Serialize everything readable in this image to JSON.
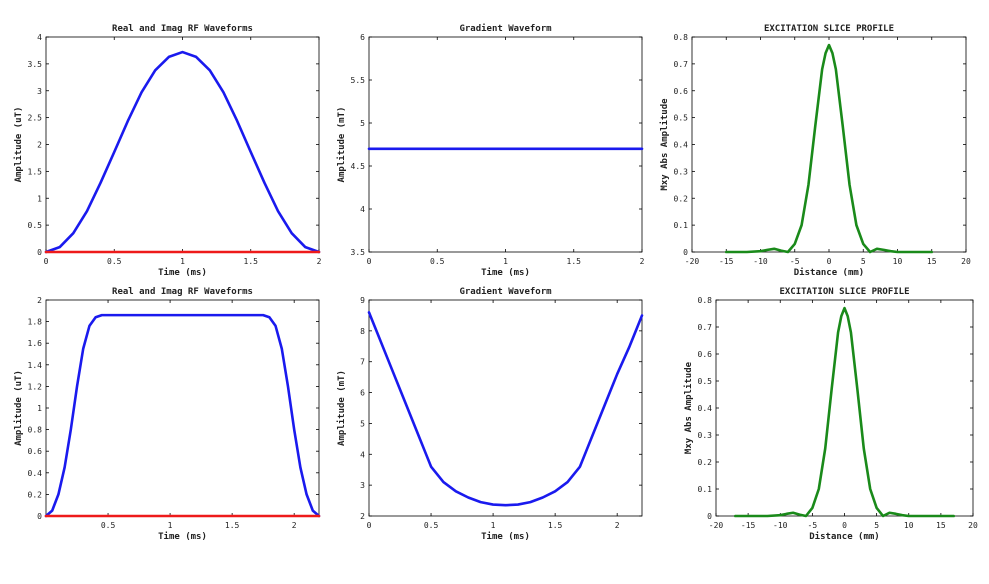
{
  "colors": {
    "real": "#1a1aee",
    "imag": "#ee1a1a",
    "profile": "#1a8a1a",
    "axis": "#000000"
  },
  "chart_data": [
    {
      "type": "line",
      "title": "Real and Imag RF Waveforms",
      "xlabel": "Time (ms)",
      "ylabel": "Amplitude (uT)",
      "xlim": [
        0,
        2
      ],
      "ylim": [
        0,
        4
      ],
      "xticks": [
        0,
        0.5,
        1,
        1.5,
        2
      ],
      "xtick_labels": [
        "0",
        "0.5",
        "1",
        "1.5",
        "2"
      ],
      "yticks": [
        0,
        0.5,
        1,
        1.5,
        2,
        2.5,
        3,
        3.5,
        4
      ],
      "ytick_labels": [
        "0",
        "0.5",
        "1",
        "1.5",
        "2",
        "2.5",
        "3",
        "3.5",
        "4"
      ],
      "grid": false,
      "series": [
        {
          "role": "real",
          "x": [
            0,
            0.1,
            0.2,
            0.3,
            0.4,
            0.5,
            0.6,
            0.7,
            0.8,
            0.9,
            1.0,
            1.1,
            1.2,
            1.3,
            1.4,
            1.5,
            1.6,
            1.7,
            1.8,
            1.9,
            2.0
          ],
          "y": [
            0,
            0.09,
            0.35,
            0.76,
            1.29,
            1.86,
            2.44,
            2.97,
            3.38,
            3.63,
            3.72,
            3.63,
            3.38,
            2.97,
            2.44,
            1.86,
            1.29,
            0.76,
            0.35,
            0.09,
            0
          ]
        },
        {
          "role": "imag",
          "x": [
            0,
            2
          ],
          "y": [
            0,
            0
          ]
        }
      ]
    },
    {
      "type": "line",
      "title": "Gradient Waveform",
      "xlabel": "Time (ms)",
      "ylabel": "Amplitude (mT)",
      "xlim": [
        0,
        2
      ],
      "ylim": [
        3.5,
        6
      ],
      "xticks": [
        0,
        0.5,
        1,
        1.5,
        2
      ],
      "xtick_labels": [
        "0",
        "0.5",
        "1",
        "1.5",
        "2"
      ],
      "yticks": [
        3.5,
        4,
        4.5,
        5,
        5.5,
        6
      ],
      "ytick_labels": [
        "3.5",
        "4",
        "4.5",
        "5",
        "5.5",
        "6"
      ],
      "grid": false,
      "series": [
        {
          "role": "real",
          "x": [
            0,
            2
          ],
          "y": [
            4.7,
            4.7
          ]
        }
      ]
    },
    {
      "type": "line",
      "title": "EXCITATION SLICE PROFILE",
      "xlabel": "Distance (mm)",
      "ylabel": "Mxy Abs Amplitude",
      "xlim": [
        -20,
        20
      ],
      "ylim": [
        0,
        0.8
      ],
      "xticks": [
        -20,
        -15,
        -10,
        -5,
        0,
        5,
        10,
        15,
        20
      ],
      "xtick_labels": [
        "-20",
        "-15",
        "-10",
        "-5",
        "0",
        "5",
        "10",
        "15",
        "20"
      ],
      "yticks": [
        0,
        0.1,
        0.2,
        0.3,
        0.4,
        0.5,
        0.6,
        0.7,
        0.8
      ],
      "ytick_labels": [
        "0",
        "0.1",
        "0.2",
        "0.3",
        "0.4",
        "0.5",
        "0.6",
        "0.7",
        "0.8"
      ],
      "grid": false,
      "series": [
        {
          "role": "profile",
          "x": [
            -15,
            -12,
            -10,
            -9,
            -8,
            -7,
            -6,
            -5,
            -4,
            -3,
            -2,
            -1,
            -0.5,
            0,
            0.5,
            1,
            2,
            3,
            4,
            5,
            6,
            7,
            8,
            9,
            10,
            12,
            15
          ],
          "y": [
            0,
            0,
            0.003,
            0.008,
            0.012,
            0.005,
            0,
            0.03,
            0.1,
            0.25,
            0.47,
            0.68,
            0.74,
            0.77,
            0.74,
            0.68,
            0.47,
            0.25,
            0.1,
            0.03,
            0,
            0.012,
            0.008,
            0.003,
            0,
            0,
            0
          ]
        }
      ]
    },
    {
      "type": "line",
      "title": "Real and Imag RF Waveforms",
      "xlabel": "Time (ms)",
      "ylabel": "Amplitude (uT)",
      "xlim": [
        0,
        2.2
      ],
      "ylim": [
        0,
        2
      ],
      "xticks": [
        0.5,
        1,
        1.5,
        2
      ],
      "xtick_labels": [
        "0.5",
        "1",
        "1.5",
        "2"
      ],
      "yticks": [
        0,
        0.2,
        0.4,
        0.6,
        0.8,
        1,
        1.2,
        1.4,
        1.6,
        1.8,
        2
      ],
      "ytick_labels": [
        "0",
        "0.2",
        "0.4",
        "0.6",
        "0.8",
        "1",
        "1.2",
        "1.4",
        "1.6",
        "1.8",
        "2"
      ],
      "grid": false,
      "series": [
        {
          "role": "real",
          "x": [
            0,
            0.05,
            0.1,
            0.15,
            0.2,
            0.25,
            0.3,
            0.35,
            0.4,
            0.45,
            1.0,
            1.75,
            1.8,
            1.85,
            1.9,
            1.95,
            2.0,
            2.05,
            2.1,
            2.15,
            2.2
          ],
          "y": [
            0,
            0.05,
            0.2,
            0.45,
            0.8,
            1.2,
            1.55,
            1.76,
            1.84,
            1.86,
            1.86,
            1.86,
            1.84,
            1.76,
            1.55,
            1.2,
            0.8,
            0.45,
            0.2,
            0.05,
            0
          ]
        },
        {
          "role": "imag",
          "x": [
            0,
            2.2
          ],
          "y": [
            0,
            0
          ]
        }
      ]
    },
    {
      "type": "line",
      "title": "Gradient Waveform",
      "xlabel": "Time (ms)",
      "ylabel": "Amplitude (mT)",
      "xlim": [
        0,
        2.2
      ],
      "ylim": [
        2,
        9
      ],
      "xticks": [
        0,
        0.5,
        1,
        1.5,
        2
      ],
      "xtick_labels": [
        "0",
        "0.5",
        "1",
        "1.5",
        "2"
      ],
      "yticks": [
        2,
        3,
        4,
        5,
        6,
        7,
        8,
        9
      ],
      "ytick_labels": [
        "2",
        "3",
        "4",
        "5",
        "6",
        "7",
        "8",
        "9"
      ],
      "grid": false,
      "series": [
        {
          "role": "real",
          "x": [
            0,
            0.1,
            0.2,
            0.3,
            0.4,
            0.45,
            0.5,
            0.6,
            0.7,
            0.8,
            0.9,
            1.0,
            1.1,
            1.2,
            1.3,
            1.4,
            1.5,
            1.6,
            1.7,
            1.75,
            1.8,
            1.9,
            2.0,
            2.1,
            2.2
          ],
          "y": [
            8.6,
            7.6,
            6.6,
            5.6,
            4.6,
            4.1,
            3.6,
            3.1,
            2.8,
            2.6,
            2.45,
            2.37,
            2.35,
            2.37,
            2.45,
            2.6,
            2.8,
            3.1,
            3.6,
            4.1,
            4.6,
            5.6,
            6.6,
            7.5,
            8.5
          ]
        }
      ]
    },
    {
      "type": "line",
      "title": "EXCITATION SLICE PROFILE",
      "xlabel": "Distance (mm)",
      "ylabel": "Mxy Abs Amplitude",
      "xlim": [
        -20,
        20
      ],
      "ylim": [
        0,
        0.8
      ],
      "xticks": [
        -20,
        -15,
        -10,
        -5,
        0,
        5,
        10,
        15,
        20
      ],
      "xtick_labels": [
        "-20",
        "-15",
        "-10",
        "-5",
        "0",
        "5",
        "10",
        "15",
        "20"
      ],
      "yticks": [
        0,
        0.1,
        0.2,
        0.3,
        0.4,
        0.5,
        0.6,
        0.7,
        0.8
      ],
      "ytick_labels": [
        "0",
        "0.1",
        "0.2",
        "0.3",
        "0.4",
        "0.5",
        "0.6",
        "0.7",
        "0.8"
      ],
      "grid": false,
      "series": [
        {
          "role": "profile",
          "x": [
            -17,
            -12,
            -10,
            -9,
            -8,
            -7,
            -6,
            -5,
            -4,
            -3,
            -2,
            -1,
            -0.5,
            0,
            0.5,
            1,
            2,
            3,
            4,
            5,
            6,
            7,
            8,
            9,
            10,
            12,
            17
          ],
          "y": [
            0,
            0,
            0.003,
            0.008,
            0.012,
            0.005,
            0,
            0.03,
            0.1,
            0.25,
            0.47,
            0.68,
            0.74,
            0.77,
            0.74,
            0.68,
            0.47,
            0.25,
            0.1,
            0.03,
            0,
            0.012,
            0.008,
            0.003,
            0,
            0,
            0
          ]
        }
      ]
    }
  ]
}
